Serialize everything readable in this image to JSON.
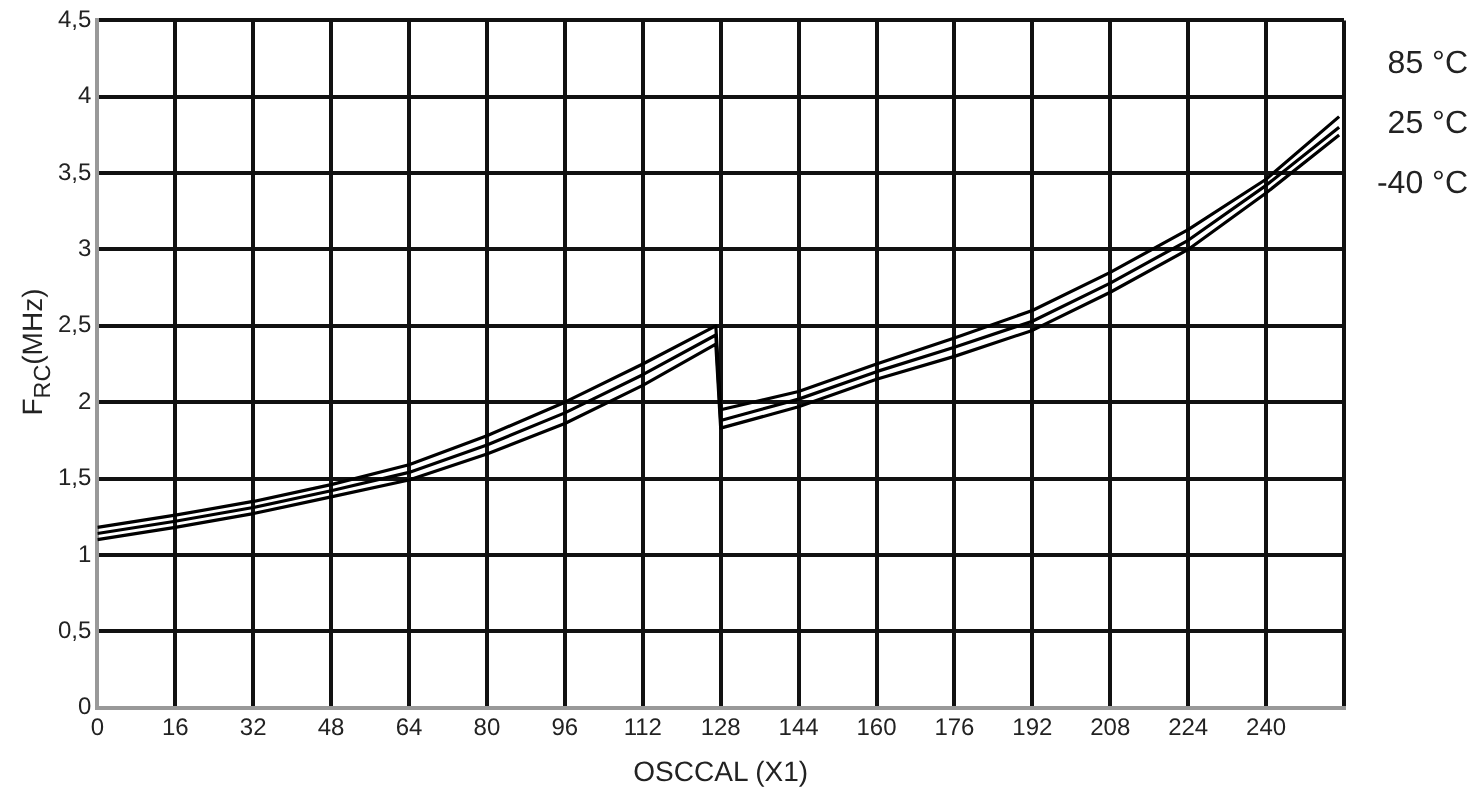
{
  "chart_data": {
    "type": "line",
    "xlabel": "OSCCAL (X1)",
    "ylabel": "F$_{RC}$(MHz)",
    "x": [
      0,
      16,
      32,
      48,
      64,
      80,
      96,
      112,
      127,
      128,
      144,
      160,
      176,
      192,
      208,
      224,
      240,
      255
    ],
    "series": [
      {
        "name": "85 °C",
        "color": "#000000",
        "values": [
          1.18,
          1.26,
          1.35,
          1.46,
          1.59,
          1.78,
          2.0,
          2.25,
          2.5,
          1.95,
          2.07,
          2.25,
          2.42,
          2.6,
          2.85,
          3.13,
          3.46,
          3.87
        ]
      },
      {
        "name": "25 °C",
        "color": "#000000",
        "values": [
          1.14,
          1.22,
          1.31,
          1.42,
          1.54,
          1.72,
          1.93,
          2.18,
          2.44,
          1.88,
          2.02,
          2.2,
          2.36,
          2.53,
          2.78,
          3.06,
          3.42,
          3.8
        ]
      },
      {
        "name": "-40 °C",
        "color": "#000000",
        "values": [
          1.1,
          1.18,
          1.27,
          1.38,
          1.49,
          1.66,
          1.86,
          2.11,
          2.38,
          1.83,
          1.97,
          2.15,
          2.3,
          2.47,
          2.72,
          3.0,
          3.37,
          3.75
        ]
      }
    ],
    "xlim": [
      0,
      256
    ],
    "xticks": [
      0,
      16,
      32,
      48,
      64,
      80,
      96,
      112,
      128,
      144,
      160,
      176,
      192,
      208,
      224,
      240,
      {
        "value": 256,
        "label": null
      }
    ],
    "ylim": [
      0,
      4.5
    ],
    "yticks": [
      0,
      {
        "value": 0.5,
        "label": "0,5"
      },
      1,
      {
        "value": 1.5,
        "label": "1,5"
      },
      2,
      {
        "value": 2.5,
        "label": "2,5"
      },
      3,
      {
        "value": 3.5,
        "label": "3,5"
      },
      4,
      {
        "value": 4.5,
        "label": "4,5"
      }
    ],
    "grid": true,
    "legend": false,
    "marker": "none",
    "line_style": "solid"
  }
}
